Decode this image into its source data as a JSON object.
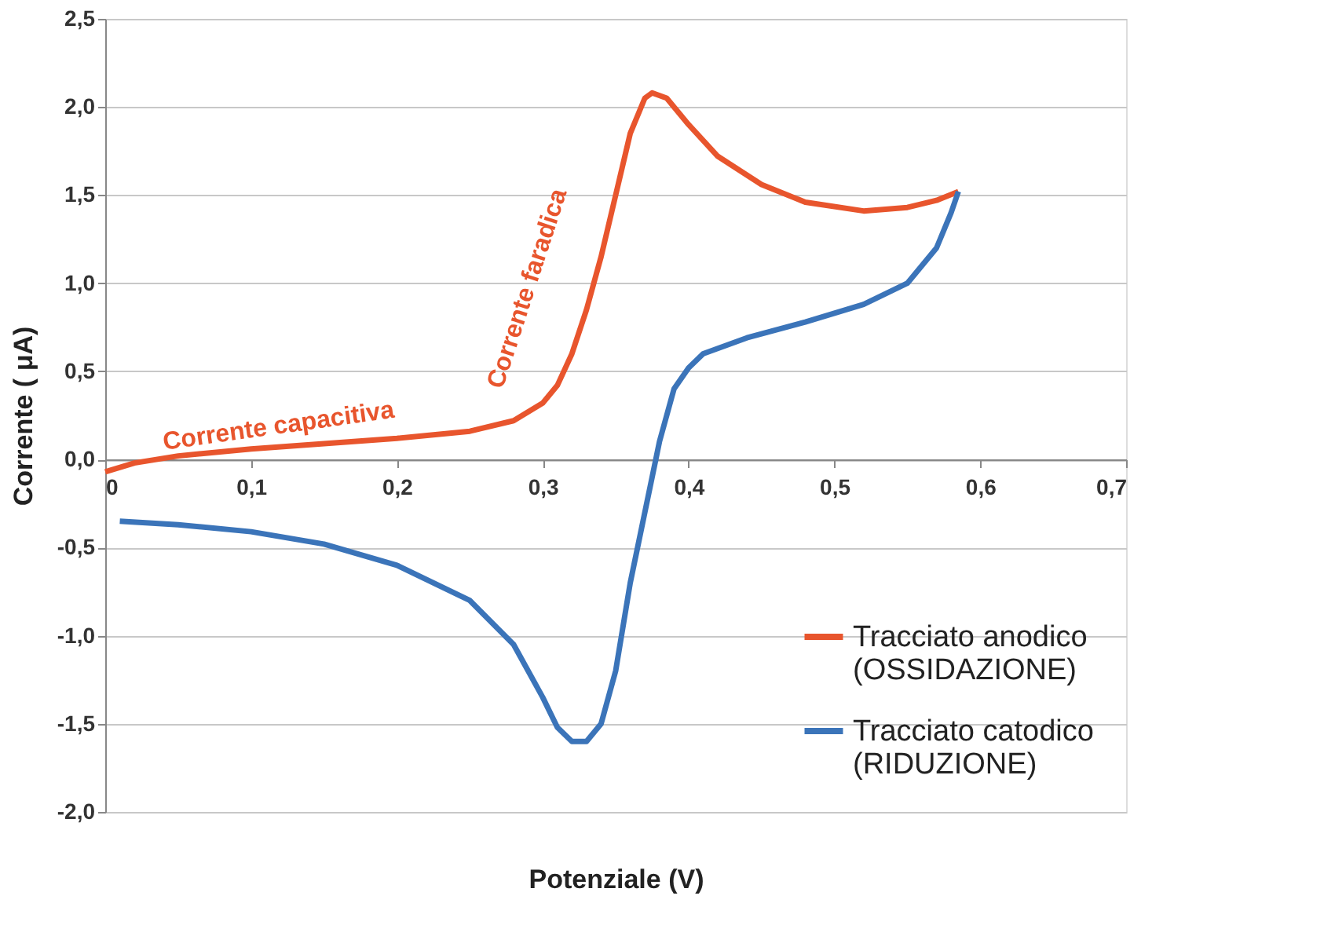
{
  "chart_data": {
    "type": "line",
    "xlabel": "Potenziale (V)",
    "ylabel": "Corrente ( μA)",
    "xlim": [
      0,
      0.7
    ],
    "ylim": [
      -2.0,
      2.5
    ],
    "xticks": [
      0,
      {
        "value": 0.1,
        "label": "0,1"
      },
      {
        "value": 0.2,
        "label": "0,2"
      },
      {
        "value": 0.3,
        "label": "0,3"
      },
      {
        "value": 0.4,
        "label": "0,4"
      },
      {
        "value": 0.5,
        "label": "0,5"
      },
      {
        "value": 0.6,
        "label": "0,6"
      },
      {
        "value": 0.7,
        "label": "0,7"
      }
    ],
    "yticks": [
      {
        "value": -2.0,
        "label": "-2,0"
      },
      {
        "value": -1.5,
        "label": "-1,5"
      },
      {
        "value": -1.0,
        "label": "-1,0"
      },
      {
        "value": -0.5,
        "label": "-0,5"
      },
      {
        "value": 0.0,
        "label": "0,0"
      },
      {
        "value": 0.5,
        "label": "0,5"
      },
      {
        "value": 1.0,
        "label": "1,0"
      },
      {
        "value": 1.5,
        "label": "1,5"
      },
      {
        "value": 2.0,
        "label": "2,0"
      },
      {
        "value": 2.5,
        "label": "2,5"
      }
    ],
    "grid": "y",
    "legend": "bottom right",
    "line_style": "solid",
    "marker": "none",
    "series": [
      {
        "name": "Tracciato anodico\n(OSSIDAZIONE)",
        "color": "#e8552d",
        "x": [
          0,
          0.02,
          0.05,
          0.1,
          0.15,
          0.2,
          0.25,
          0.28,
          0.3,
          0.31,
          0.32,
          0.33,
          0.34,
          0.35,
          0.36,
          0.37,
          0.375,
          0.385,
          0.4,
          0.42,
          0.45,
          0.48,
          0.52,
          0.55,
          0.57,
          0.585
        ],
        "values": [
          -0.07,
          -0.02,
          0.02,
          0.06,
          0.09,
          0.12,
          0.16,
          0.22,
          0.32,
          0.42,
          0.6,
          0.85,
          1.15,
          1.5,
          1.85,
          2.05,
          2.08,
          2.05,
          1.9,
          1.72,
          1.56,
          1.46,
          1.41,
          1.43,
          1.47,
          1.52
        ]
      },
      {
        "name": "Tracciato catodico\n(RIDUZIONE)",
        "color": "#3b74b9",
        "x": [
          0.585,
          0.58,
          0.57,
          0.55,
          0.52,
          0.48,
          0.44,
          0.41,
          0.4,
          0.39,
          0.38,
          0.37,
          0.36,
          0.35,
          0.34,
          0.33,
          0.32,
          0.31,
          0.3,
          0.28,
          0.25,
          0.2,
          0.15,
          0.1,
          0.05,
          0.01
        ],
        "values": [
          1.52,
          1.4,
          1.2,
          1.0,
          0.88,
          0.78,
          0.69,
          0.6,
          0.52,
          0.4,
          0.1,
          -0.3,
          -0.7,
          -1.2,
          -1.5,
          -1.6,
          -1.6,
          -1.52,
          -1.35,
          -1.05,
          -0.8,
          -0.6,
          -0.48,
          -0.41,
          -0.37,
          -0.35
        ]
      }
    ],
    "annotations": [
      {
        "text": "Corrente capacitiva",
        "x": 0.12,
        "y": 0.12
      },
      "Corrente faradica"
    ]
  }
}
